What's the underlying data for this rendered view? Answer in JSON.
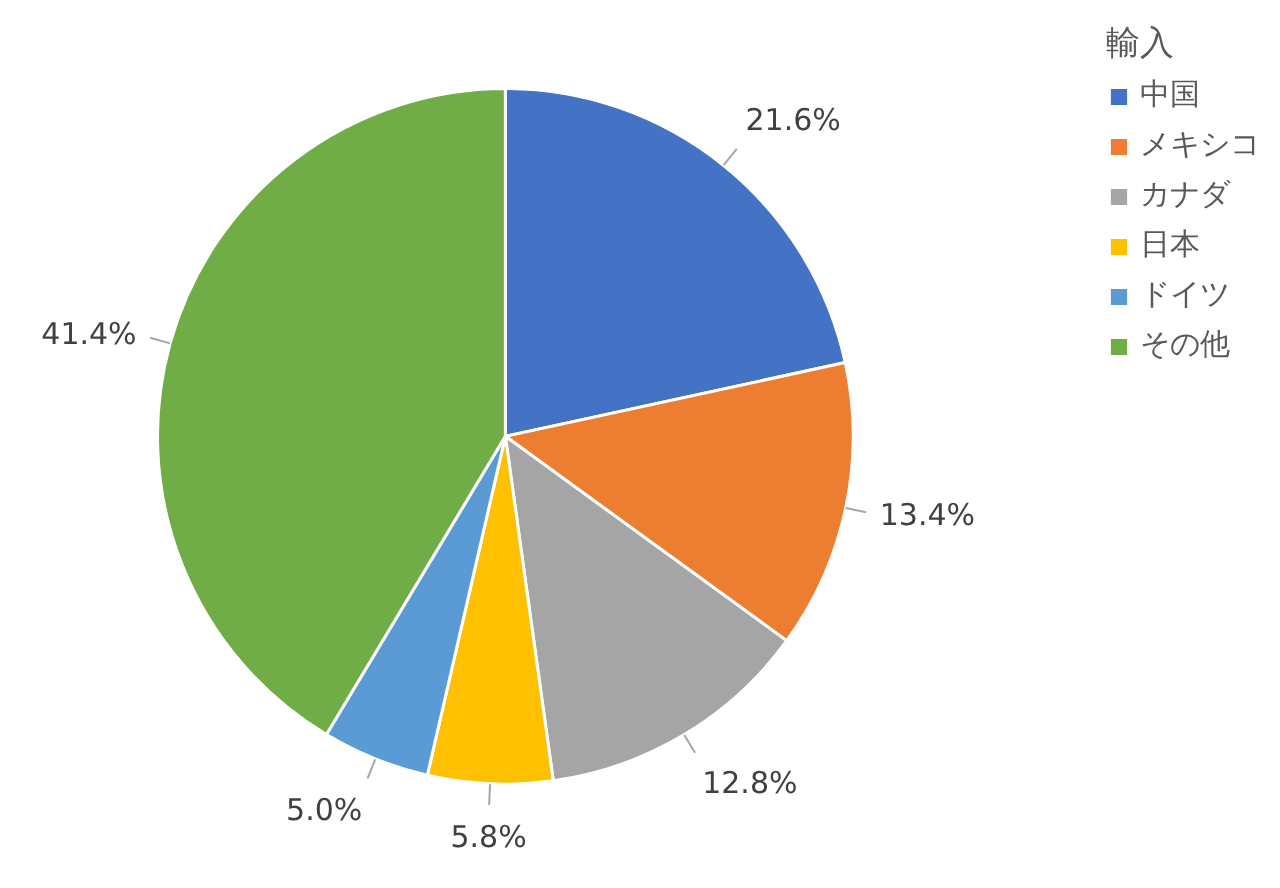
{
  "chart_data": {
    "type": "pie",
    "legend_title": "輸入",
    "legend": "right",
    "categories": [
      "中国",
      "メキシコ",
      "カナダ",
      "日本",
      "ドイツ",
      "その他"
    ],
    "values": [
      21.6,
      13.4,
      12.8,
      5.8,
      5.0,
      41.4
    ],
    "colors": [
      "#4472c4",
      "#ed7d31",
      "#a5a5a5",
      "#ffc000",
      "#5b9bd5",
      "#70ad47"
    ],
    "value_labels": [
      "21.6%",
      "13.4%",
      "12.8%",
      "5.8%",
      "5.0%",
      "41.4%"
    ]
  }
}
